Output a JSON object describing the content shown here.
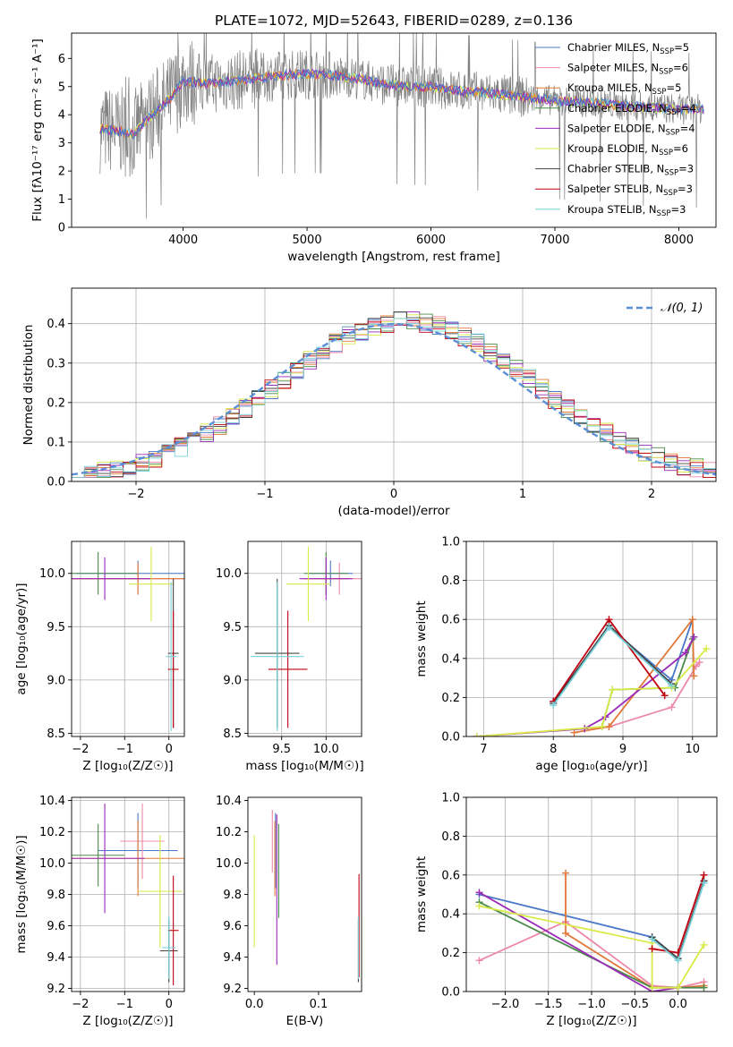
{
  "title": "PLATE=1072, MJD=52643, FIBERID=0289, z=0.136",
  "colors": {
    "Chabrier MILES": "#4a78c8",
    "Salpeter MILES": "#ee88aa",
    "Kroupa MILES": "#e07838",
    "Chabrier ELODIE": "#4a8a4a",
    "Salpeter ELODIE": "#9a2ab8",
    "Kroupa ELODIE": "#d8ea48",
    "Chabrier STELIB": "#444444",
    "Salpeter STELIB": "#c00010",
    "Kroupa STELIB": "#78d0d8",
    "data": "#808080",
    "normal": "#5b8fd6"
  },
  "chart_data": [
    {
      "id": "spectrum",
      "type": "line",
      "title": "PLATE=1072, MJD=52643, FIBERID=0289, z=0.136",
      "xlabel": "wavelength [Angstrom, rest frame]",
      "ylabel": "Flux [fλ10⁻¹⁷ erg cm⁻² s⁻¹ A⁻¹]",
      "xlim": [
        3100,
        8300
      ],
      "ylim": [
        0,
        6.9
      ],
      "xticks": [
        4000,
        5000,
        6000,
        7000,
        8000
      ],
      "yticks": [
        0,
        1,
        2,
        3,
        4,
        5,
        6
      ],
      "legend_position": "top-right",
      "legend": [
        {
          "name": "Chabrier MILES",
          "ssp": "5"
        },
        {
          "name": "Salpeter MILES",
          "ssp": "6"
        },
        {
          "name": "Kroupa MILES",
          "ssp": "5"
        },
        {
          "name": "Chabrier ELODIE",
          "ssp": "4"
        },
        {
          "name": "Salpeter ELODIE",
          "ssp": "4"
        },
        {
          "name": "Kroupa ELODIE",
          "ssp": "6"
        },
        {
          "name": "Chabrier STELIB",
          "ssp": "3"
        },
        {
          "name": "Salpeter STELIB",
          "ssp": "3"
        },
        {
          "name": "Kroupa STELIB",
          "ssp": "3"
        }
      ],
      "continuum_knots": [
        [
          3330,
          3.5
        ],
        [
          3500,
          3.4
        ],
        [
          3600,
          3.3
        ],
        [
          3700,
          3.8
        ],
        [
          3900,
          4.6
        ],
        [
          4000,
          5.2
        ],
        [
          4200,
          5.1
        ],
        [
          4400,
          5.2
        ],
        [
          4600,
          5.3
        ],
        [
          4800,
          5.4
        ],
        [
          5000,
          5.45
        ],
        [
          5200,
          5.4
        ],
        [
          5400,
          5.3
        ],
        [
          5600,
          5.1
        ],
        [
          5800,
          5.0
        ],
        [
          6000,
          5.0
        ],
        [
          6200,
          4.85
        ],
        [
          6400,
          4.8
        ],
        [
          6600,
          4.7
        ],
        [
          6800,
          4.6
        ],
        [
          7000,
          4.5
        ],
        [
          7200,
          4.45
        ],
        [
          7400,
          4.4
        ],
        [
          7600,
          4.3
        ],
        [
          7800,
          4.25
        ],
        [
          8000,
          4.2
        ],
        [
          8200,
          4.2
        ]
      ]
    },
    {
      "id": "residuals",
      "type": "area",
      "xlabel": "(data-model)/error",
      "ylabel": "Normed distribution",
      "xlim": [
        -2.5,
        2.5
      ],
      "ylim": [
        0,
        0.49
      ],
      "xticks": [
        -2,
        -1,
        0,
        1,
        2
      ],
      "yticks": [
        0.0,
        0.1,
        0.2,
        0.3,
        0.4
      ],
      "grid": true,
      "legend_position": "top-right",
      "normal_label": "𝒩(0, 1)",
      "bin_width": 0.1
    },
    {
      "id": "age-vs-Z",
      "type": "scatter",
      "xlabel": "Z [log₁₀(Z/Z☉)]",
      "ylabel": "age  [log₁₀(age/yr)]",
      "xlim": [
        -2.2,
        0.35
      ],
      "ylim": [
        8.47,
        10.3
      ],
      "xticks": [
        -2,
        -1,
        0
      ],
      "yticks": [
        8.5,
        9.0,
        9.5,
        10.0
      ],
      "grid": true,
      "points": [
        {
          "model": "Chabrier MILES",
          "x": -0.7,
          "xerr": 1.4,
          "y": 10.0,
          "yerr": 0.12
        },
        {
          "model": "Salpeter MILES",
          "x": -0.7,
          "xerr": 1.5,
          "y": 9.95,
          "yerr": 0.15
        },
        {
          "model": "Kroupa MILES",
          "x": -0.7,
          "xerr": 1.5,
          "y": 9.95,
          "yerr": 0.15
        },
        {
          "model": "Chabrier ELODIE",
          "x": -1.6,
          "xerr": 0.9,
          "y": 10.0,
          "yerr": 0.2
        },
        {
          "model": "Salpeter ELODIE",
          "x": -1.45,
          "xerr": 1.05,
          "y": 9.95,
          "yerr": 0.2
        },
        {
          "model": "Kroupa ELODIE",
          "x": -0.4,
          "xerr": 0.5,
          "y": 9.9,
          "yerr": 0.35
        },
        {
          "model": "Chabrier STELIB",
          "x": 0.1,
          "xerr": 0.12,
          "y": 9.25,
          "yerr": 0.7
        },
        {
          "model": "Salpeter STELIB",
          "x": 0.1,
          "xerr": 0.12,
          "y": 9.1,
          "yerr": 0.55
        },
        {
          "model": "Kroupa STELIB",
          "x": 0.05,
          "xerr": 0.12,
          "y": 9.22,
          "yerr": 0.7
        }
      ]
    },
    {
      "id": "age-vs-mass",
      "type": "scatter",
      "xlabel": "mass [log₁₀(M/M☉)]",
      "ylabel": "",
      "xlim": [
        9.12,
        10.4
      ],
      "ylim": [
        8.47,
        10.3
      ],
      "xticks": [
        9.5,
        10.0
      ],
      "yticks": [
        8.5,
        9.0,
        9.5,
        10.0
      ],
      "grid": true,
      "points": [
        {
          "model": "Chabrier MILES",
          "x": 10.05,
          "xerr": 0.25,
          "y": 10.0,
          "yerr": 0.12
        },
        {
          "model": "Salpeter MILES",
          "x": 10.15,
          "xerr": 0.25,
          "y": 9.95,
          "yerr": 0.15
        },
        {
          "model": "Kroupa MILES",
          "x": 10.0,
          "xerr": 0.25,
          "y": 9.95,
          "yerr": 0.15
        },
        {
          "model": "Chabrier ELODIE",
          "x": 10.0,
          "xerr": 0.25,
          "y": 10.0,
          "yerr": 0.2
        },
        {
          "model": "Salpeter ELODIE",
          "x": 10.0,
          "xerr": 0.3,
          "y": 9.95,
          "yerr": 0.2
        },
        {
          "model": "Kroupa ELODIE",
          "x": 9.8,
          "xerr": 0.25,
          "y": 9.9,
          "yerr": 0.35
        },
        {
          "model": "Chabrier STELIB",
          "x": 9.45,
          "xerr": 0.25,
          "y": 9.25,
          "yerr": 0.7
        },
        {
          "model": "Salpeter STELIB",
          "x": 9.57,
          "xerr": 0.22,
          "y": 9.1,
          "yerr": 0.55
        },
        {
          "model": "Kroupa STELIB",
          "x": 9.45,
          "xerr": 0.3,
          "y": 9.22,
          "yerr": 0.7
        }
      ]
    },
    {
      "id": "mass-weight-vs-age",
      "type": "line",
      "xlabel": "age  [log₁₀(age/yr)]",
      "ylabel": "mass weight",
      "xlim": [
        6.75,
        10.35
      ],
      "ylim": [
        0,
        1.0
      ],
      "xticks": [
        7,
        8,
        9,
        10
      ],
      "yticks": [
        0.0,
        0.2,
        0.4,
        0.6,
        0.8,
        1.0
      ],
      "grid": true,
      "series": [
        {
          "name": "Chabrier MILES",
          "x": [
            8.0,
            8.8,
            9.7,
            10.0
          ],
          "y": [
            0.18,
            0.56,
            0.29,
            0.6
          ]
        },
        {
          "name": "Salpeter MILES",
          "x": [
            6.9,
            8.8,
            9.7,
            10.05,
            10.1
          ],
          "y": [
            0.0,
            0.05,
            0.15,
            0.36,
            0.38
          ]
        },
        {
          "name": "Kroupa MILES",
          "x": [
            8.3,
            8.8,
            10.0,
            10.02
          ],
          "y": [
            0.02,
            0.05,
            0.6,
            0.31
          ]
        },
        {
          "name": "Chabrier ELODIE",
          "x": [
            8.7,
            8.85,
            9.75,
            10.0
          ],
          "y": [
            0.05,
            0.24,
            0.25,
            0.5
          ]
        },
        {
          "name": "Salpeter ELODIE",
          "x": [
            6.9,
            8.45,
            8.75,
            9.9,
            10.02
          ],
          "y": [
            0.0,
            0.04,
            0.1,
            0.43,
            0.51
          ]
        },
        {
          "name": "Kroupa ELODIE",
          "x": [
            6.9,
            8.7,
            8.85,
            9.7,
            10.2
          ],
          "y": [
            0.0,
            0.05,
            0.24,
            0.25,
            0.45
          ]
        },
        {
          "name": "Chabrier STELIB",
          "x": [
            8.0,
            8.8,
            9.7
          ],
          "y": [
            0.17,
            0.57,
            0.27
          ]
        },
        {
          "name": "Salpeter STELIB",
          "x": [
            8.0,
            8.8,
            9.6
          ],
          "y": [
            0.18,
            0.6,
            0.21
          ]
        },
        {
          "name": "Kroupa STELIB",
          "x": [
            8.0,
            8.8,
            9.7
          ],
          "y": [
            0.16,
            0.56,
            0.26
          ]
        }
      ]
    },
    {
      "id": "mass-vs-Z",
      "type": "scatter",
      "xlabel": "Z [log₁₀(Z/Z☉)]",
      "ylabel": "mass [log₁₀(M/M☉)]",
      "xlim": [
        -2.2,
        0.35
      ],
      "ylim": [
        9.18,
        10.42
      ],
      "xticks": [
        -2,
        -1,
        0
      ],
      "yticks": [
        9.2,
        9.4,
        9.6,
        9.8,
        10.0,
        10.2,
        10.4
      ],
      "grid": true,
      "points": [
        {
          "model": "Chabrier MILES",
          "x": -0.7,
          "xerr": 0.9,
          "y": 10.08,
          "yerr": 0.24
        },
        {
          "model": "Salpeter MILES",
          "x": -0.6,
          "xerr": 0.5,
          "y": 10.14,
          "yerr": 0.24
        },
        {
          "model": "Kroupa MILES",
          "x": -0.7,
          "xerr": 1.5,
          "y": 10.03,
          "yerr": 0.24
        },
        {
          "model": "Chabrier ELODIE",
          "x": -1.6,
          "xerr": 0.6,
          "y": 10.05,
          "yerr": 0.2
        },
        {
          "model": "Salpeter ELODIE",
          "x": -1.45,
          "xerr": 0.9,
          "y": 10.03,
          "yerr": 0.35
        },
        {
          "model": "Kroupa ELODIE",
          "x": -0.2,
          "xerr": 0.5,
          "y": 9.82,
          "yerr": 0.36
        },
        {
          "model": "Chabrier STELIB",
          "x": 0.0,
          "xerr": 0.2,
          "y": 9.44,
          "yerr": 0.2
        },
        {
          "model": "Salpeter STELIB",
          "x": 0.1,
          "xerr": 0.12,
          "y": 9.57,
          "yerr": 0.35
        },
        {
          "model": "Kroupa STELIB",
          "x": 0.0,
          "xerr": 0.15,
          "y": 9.46,
          "yerr": 0.2
        }
      ]
    },
    {
      "id": "mass-vs-ebv",
      "type": "scatter",
      "xlabel": "E(B-V)",
      "ylabel": "",
      "xlim": [
        -0.01,
        0.167
      ],
      "ylim": [
        9.18,
        10.42
      ],
      "xticks": [
        0.0,
        0.1
      ],
      "yticks": [
        9.2,
        9.4,
        9.6,
        9.8,
        10.0,
        10.2,
        10.4
      ],
      "grid": false,
      "points": [
        {
          "model": "Chabrier MILES",
          "x": 0.033,
          "y": 10.08,
          "yerr": 0.24
        },
        {
          "model": "Salpeter MILES",
          "x": 0.028,
          "y": 10.14,
          "yerr": 0.2
        },
        {
          "model": "Kroupa MILES",
          "x": 0.032,
          "y": 10.03,
          "yerr": 0.24
        },
        {
          "model": "Chabrier ELODIE",
          "x": 0.038,
          "y": 9.95,
          "yerr": 0.3
        },
        {
          "model": "Salpeter ELODIE",
          "x": 0.035,
          "y": 9.83,
          "yerr": 0.48
        },
        {
          "model": "Kroupa ELODIE",
          "x": 0.0,
          "y": 9.82,
          "yerr": 0.36
        },
        {
          "model": "Chabrier STELIB",
          "x": 0.162,
          "y": 9.44,
          "yerr": 0.2
        },
        {
          "model": "Salpeter STELIB",
          "x": 0.163,
          "y": 9.6,
          "yerr": 0.33
        },
        {
          "model": "Kroupa STELIB",
          "x": 0.162,
          "y": 9.46,
          "yerr": 0.2
        }
      ]
    },
    {
      "id": "mass-weight-vs-Z",
      "type": "line",
      "xlabel": "Z [log₁₀(Z/Z☉)]",
      "ylabel": "mass weight",
      "xlim": [
        -2.45,
        0.45
      ],
      "ylim": [
        0,
        1.0
      ],
      "xticks": [
        -2.0,
        -1.5,
        -1.0,
        -0.5,
        0.0
      ],
      "yticks": [
        0.0,
        0.2,
        0.4,
        0.6,
        0.8,
        1.0
      ],
      "grid": true,
      "series": [
        {
          "name": "Chabrier MILES",
          "x": [
            -2.3,
            -0.3,
            0.0,
            0.3
          ],
          "y": [
            0.5,
            0.28,
            0.17,
            0.56
          ]
        },
        {
          "name": "Salpeter MILES",
          "x": [
            -2.3,
            -1.3,
            -0.3,
            0.0,
            0.3
          ],
          "y": [
            0.16,
            0.36,
            0.03,
            0.02,
            0.05
          ]
        },
        {
          "name": "Kroupa MILES",
          "x": [
            -1.3,
            -1.3,
            -0.3,
            0.0,
            0.3
          ],
          "y": [
            0.61,
            0.3,
            0.02,
            0.02,
            0.03
          ]
        },
        {
          "name": "Chabrier ELODIE",
          "x": [
            -2.3,
            -0.3,
            0.0,
            0.3
          ],
          "y": [
            0.46,
            0.02,
            0.02,
            0.02
          ]
        },
        {
          "name": "Salpeter ELODIE",
          "x": [
            -2.3,
            -0.3,
            0.0
          ],
          "y": [
            0.51,
            0.0,
            0.02
          ]
        },
        {
          "name": "Kroupa ELODIE",
          "x": [
            -2.3,
            -0.3,
            -0.3,
            0.0,
            0.3
          ],
          "y": [
            0.44,
            0.25,
            0.02,
            0.02,
            0.24
          ]
        },
        {
          "name": "Chabrier STELIB",
          "x": [
            -0.3,
            0.0,
            0.3
          ],
          "y": [
            0.28,
            0.17,
            0.57
          ]
        },
        {
          "name": "Salpeter STELIB",
          "x": [
            -0.3,
            0.0,
            0.3
          ],
          "y": [
            0.22,
            0.2,
            0.6
          ]
        },
        {
          "name": "Kroupa STELIB",
          "x": [
            -0.3,
            0.0,
            0.3
          ],
          "y": [
            0.27,
            0.16,
            0.56
          ]
        }
      ]
    }
  ]
}
